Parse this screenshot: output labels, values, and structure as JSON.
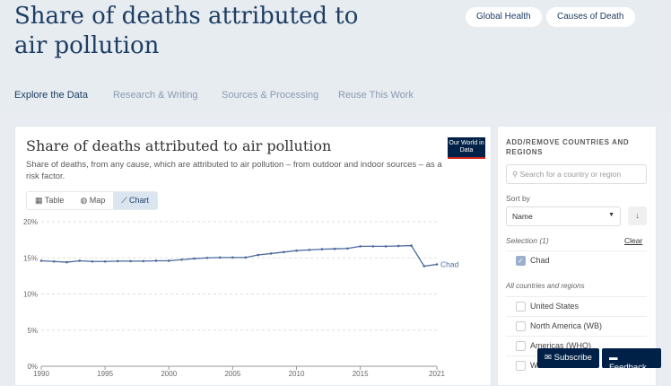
{
  "page": {
    "title": "Share of deaths attributed to air pollution",
    "tags": [
      "Global Health",
      "Causes of Death"
    ],
    "tabs": [
      "Explore the Data",
      "Research & Writing",
      "Sources & Processing",
      "Reuse This Work"
    ]
  },
  "chart_card": {
    "title": "Share of deaths attributed to air pollution",
    "subtitle": "Share of deaths, from any cause, which are attributed to air pollution – from outdoor and indoor sources – as a risk factor.",
    "logo": "Our World in Data",
    "views": [
      "Table",
      "Map",
      "Chart"
    ]
  },
  "sidebar": {
    "heading": "ADD/REMOVE COUNTRIES AND REGIONS",
    "search_placeholder": "Search for a country or region",
    "sort_label": "Sort by",
    "sort_value": "Name",
    "selection_label": "Selection (1)",
    "clear": "Clear",
    "selected": [
      "Chad"
    ],
    "all_label": "All countries and regions",
    "entities": [
      "United States",
      "North America (WB)",
      "Americas (WHO)",
      "World"
    ]
  },
  "buttons": {
    "subscribe": "Subscribe",
    "feedback": "Feedback"
  },
  "chart_data": {
    "type": "line",
    "title": "Share of deaths attributed to air pollution",
    "ylim": [
      0,
      20
    ],
    "yticks": [
      "0%",
      "5%",
      "10%",
      "15%",
      "20%"
    ],
    "ytick_values": [
      0,
      5,
      10,
      15,
      20
    ],
    "xticks": [
      "1990",
      "1995",
      "2000",
      "2005",
      "2010",
      "2015",
      "2021"
    ],
    "xtick_values": [
      1990,
      1995,
      2000,
      2005,
      2010,
      2015,
      2021
    ],
    "x": [
      1990,
      1991,
      1992,
      1993,
      1994,
      1995,
      1996,
      1997,
      1998,
      1999,
      2000,
      2001,
      2002,
      2003,
      2004,
      2005,
      2006,
      2007,
      2008,
      2009,
      2010,
      2011,
      2012,
      2013,
      2014,
      2015,
      2016,
      2017,
      2018,
      2019,
      2020,
      2021
    ],
    "series": [
      {
        "name": "Chad",
        "color": "#4c6a9c",
        "values": [
          14.6,
          14.5,
          14.4,
          14.6,
          14.5,
          14.5,
          14.55,
          14.55,
          14.55,
          14.6,
          14.6,
          14.75,
          14.9,
          15.0,
          15.05,
          15.05,
          15.05,
          15.4,
          15.6,
          15.8,
          16.0,
          16.1,
          16.2,
          16.25,
          16.3,
          16.6,
          16.6,
          16.6,
          16.65,
          16.7,
          13.85,
          14.1
        ]
      }
    ]
  }
}
